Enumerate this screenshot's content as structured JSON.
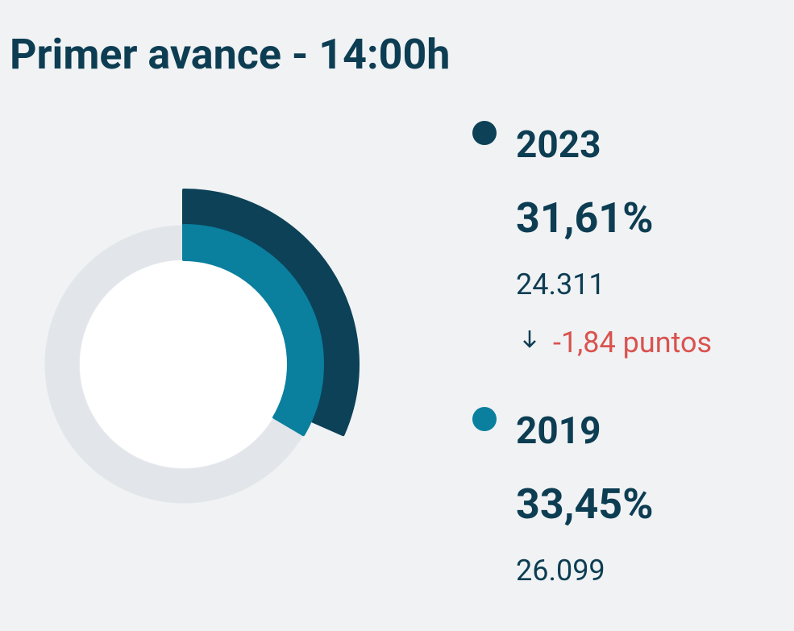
{
  "chart_data": {
    "type": "radial-bar",
    "title": "Primer avance - 14:00h",
    "ylim": [
      0,
      100
    ],
    "series": [
      {
        "name": "2023",
        "color": "#0c4157",
        "value": 31.61,
        "value_label": "31,61%",
        "count": "24.311",
        "change": "-1,84 puntos"
      },
      {
        "name": "2019",
        "color": "#0a7f9e",
        "value": 33.45,
        "value_label": "33,45%",
        "count": "26.099"
      }
    ]
  }
}
